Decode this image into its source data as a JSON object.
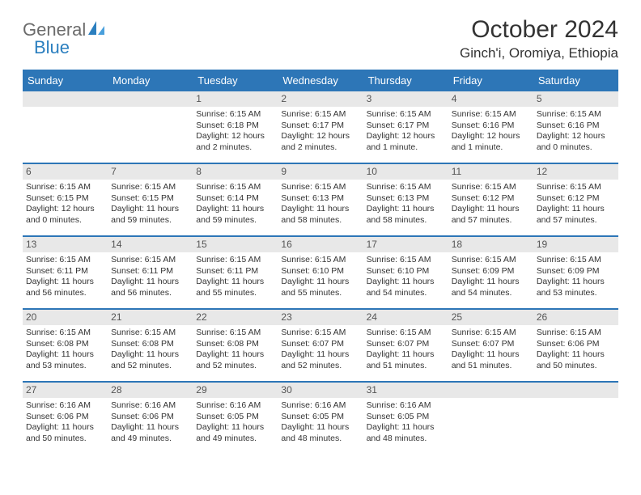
{
  "brand": {
    "part1": "General",
    "part2": "Blue"
  },
  "title": "October 2024",
  "location": "Ginch'i, Oromiya, Ethiopia",
  "colors": {
    "header_bg": "#2d76b7",
    "header_text": "#ffffff",
    "date_row_bg": "#e8e8e8",
    "border": "#2d76b7",
    "body_text": "#333333",
    "logo_gray": "#6b6b6b",
    "logo_blue": "#2b7fbf"
  },
  "day_names": [
    "Sunday",
    "Monday",
    "Tuesday",
    "Wednesday",
    "Thursday",
    "Friday",
    "Saturday"
  ],
  "weeks": [
    [
      {
        "blank": true
      },
      {
        "blank": true
      },
      {
        "date": "1",
        "sunrise": "Sunrise: 6:15 AM",
        "sunset": "Sunset: 6:18 PM",
        "daylight": "Daylight: 12 hours and 2 minutes."
      },
      {
        "date": "2",
        "sunrise": "Sunrise: 6:15 AM",
        "sunset": "Sunset: 6:17 PM",
        "daylight": "Daylight: 12 hours and 2 minutes."
      },
      {
        "date": "3",
        "sunrise": "Sunrise: 6:15 AM",
        "sunset": "Sunset: 6:17 PM",
        "daylight": "Daylight: 12 hours and 1 minute."
      },
      {
        "date": "4",
        "sunrise": "Sunrise: 6:15 AM",
        "sunset": "Sunset: 6:16 PM",
        "daylight": "Daylight: 12 hours and 1 minute."
      },
      {
        "date": "5",
        "sunrise": "Sunrise: 6:15 AM",
        "sunset": "Sunset: 6:16 PM",
        "daylight": "Daylight: 12 hours and 0 minutes."
      }
    ],
    [
      {
        "date": "6",
        "sunrise": "Sunrise: 6:15 AM",
        "sunset": "Sunset: 6:15 PM",
        "daylight": "Daylight: 12 hours and 0 minutes."
      },
      {
        "date": "7",
        "sunrise": "Sunrise: 6:15 AM",
        "sunset": "Sunset: 6:15 PM",
        "daylight": "Daylight: 11 hours and 59 minutes."
      },
      {
        "date": "8",
        "sunrise": "Sunrise: 6:15 AM",
        "sunset": "Sunset: 6:14 PM",
        "daylight": "Daylight: 11 hours and 59 minutes."
      },
      {
        "date": "9",
        "sunrise": "Sunrise: 6:15 AM",
        "sunset": "Sunset: 6:13 PM",
        "daylight": "Daylight: 11 hours and 58 minutes."
      },
      {
        "date": "10",
        "sunrise": "Sunrise: 6:15 AM",
        "sunset": "Sunset: 6:13 PM",
        "daylight": "Daylight: 11 hours and 58 minutes."
      },
      {
        "date": "11",
        "sunrise": "Sunrise: 6:15 AM",
        "sunset": "Sunset: 6:12 PM",
        "daylight": "Daylight: 11 hours and 57 minutes."
      },
      {
        "date": "12",
        "sunrise": "Sunrise: 6:15 AM",
        "sunset": "Sunset: 6:12 PM",
        "daylight": "Daylight: 11 hours and 57 minutes."
      }
    ],
    [
      {
        "date": "13",
        "sunrise": "Sunrise: 6:15 AM",
        "sunset": "Sunset: 6:11 PM",
        "daylight": "Daylight: 11 hours and 56 minutes."
      },
      {
        "date": "14",
        "sunrise": "Sunrise: 6:15 AM",
        "sunset": "Sunset: 6:11 PM",
        "daylight": "Daylight: 11 hours and 56 minutes."
      },
      {
        "date": "15",
        "sunrise": "Sunrise: 6:15 AM",
        "sunset": "Sunset: 6:11 PM",
        "daylight": "Daylight: 11 hours and 55 minutes."
      },
      {
        "date": "16",
        "sunrise": "Sunrise: 6:15 AM",
        "sunset": "Sunset: 6:10 PM",
        "daylight": "Daylight: 11 hours and 55 minutes."
      },
      {
        "date": "17",
        "sunrise": "Sunrise: 6:15 AM",
        "sunset": "Sunset: 6:10 PM",
        "daylight": "Daylight: 11 hours and 54 minutes."
      },
      {
        "date": "18",
        "sunrise": "Sunrise: 6:15 AM",
        "sunset": "Sunset: 6:09 PM",
        "daylight": "Daylight: 11 hours and 54 minutes."
      },
      {
        "date": "19",
        "sunrise": "Sunrise: 6:15 AM",
        "sunset": "Sunset: 6:09 PM",
        "daylight": "Daylight: 11 hours and 53 minutes."
      }
    ],
    [
      {
        "date": "20",
        "sunrise": "Sunrise: 6:15 AM",
        "sunset": "Sunset: 6:08 PM",
        "daylight": "Daylight: 11 hours and 53 minutes."
      },
      {
        "date": "21",
        "sunrise": "Sunrise: 6:15 AM",
        "sunset": "Sunset: 6:08 PM",
        "daylight": "Daylight: 11 hours and 52 minutes."
      },
      {
        "date": "22",
        "sunrise": "Sunrise: 6:15 AM",
        "sunset": "Sunset: 6:08 PM",
        "daylight": "Daylight: 11 hours and 52 minutes."
      },
      {
        "date": "23",
        "sunrise": "Sunrise: 6:15 AM",
        "sunset": "Sunset: 6:07 PM",
        "daylight": "Daylight: 11 hours and 52 minutes."
      },
      {
        "date": "24",
        "sunrise": "Sunrise: 6:15 AM",
        "sunset": "Sunset: 6:07 PM",
        "daylight": "Daylight: 11 hours and 51 minutes."
      },
      {
        "date": "25",
        "sunrise": "Sunrise: 6:15 AM",
        "sunset": "Sunset: 6:07 PM",
        "daylight": "Daylight: 11 hours and 51 minutes."
      },
      {
        "date": "26",
        "sunrise": "Sunrise: 6:15 AM",
        "sunset": "Sunset: 6:06 PM",
        "daylight": "Daylight: 11 hours and 50 minutes."
      }
    ],
    [
      {
        "date": "27",
        "sunrise": "Sunrise: 6:16 AM",
        "sunset": "Sunset: 6:06 PM",
        "daylight": "Daylight: 11 hours and 50 minutes."
      },
      {
        "date": "28",
        "sunrise": "Sunrise: 6:16 AM",
        "sunset": "Sunset: 6:06 PM",
        "daylight": "Daylight: 11 hours and 49 minutes."
      },
      {
        "date": "29",
        "sunrise": "Sunrise: 6:16 AM",
        "sunset": "Sunset: 6:05 PM",
        "daylight": "Daylight: 11 hours and 49 minutes."
      },
      {
        "date": "30",
        "sunrise": "Sunrise: 6:16 AM",
        "sunset": "Sunset: 6:05 PM",
        "daylight": "Daylight: 11 hours and 48 minutes."
      },
      {
        "date": "31",
        "sunrise": "Sunrise: 6:16 AM",
        "sunset": "Sunset: 6:05 PM",
        "daylight": "Daylight: 11 hours and 48 minutes."
      },
      {
        "blank": true
      },
      {
        "blank": true
      }
    ]
  ]
}
